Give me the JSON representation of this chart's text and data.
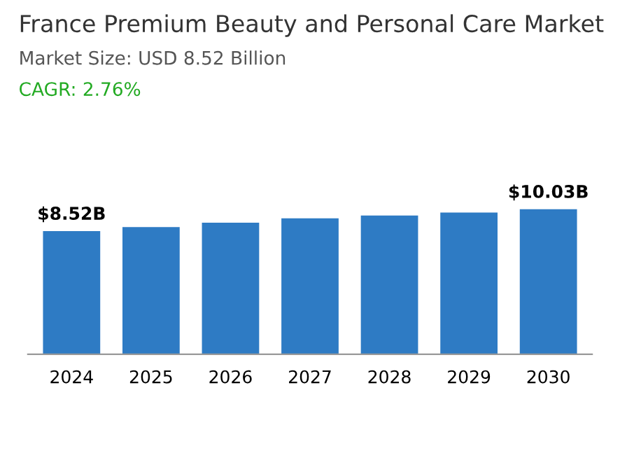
{
  "chart_data": {
    "type": "bar",
    "title": "France Premium Beauty and Personal Care Market",
    "subtitle": "Market Size: USD 8.52 Billion",
    "annotations": [
      "CAGR: 2.76%"
    ],
    "categories": [
      "2024",
      "2025",
      "2026",
      "2027",
      "2028",
      "2029",
      "2030"
    ],
    "values": [
      8.52,
      8.8,
      9.1,
      9.4,
      9.6,
      9.8,
      10.03
    ],
    "value_labels": [
      "$8.52B",
      null,
      null,
      null,
      null,
      null,
      "$10.03B"
    ],
    "color": "#2e7bc4",
    "tick_labels": "x",
    "grid": false,
    "legend": false
  }
}
